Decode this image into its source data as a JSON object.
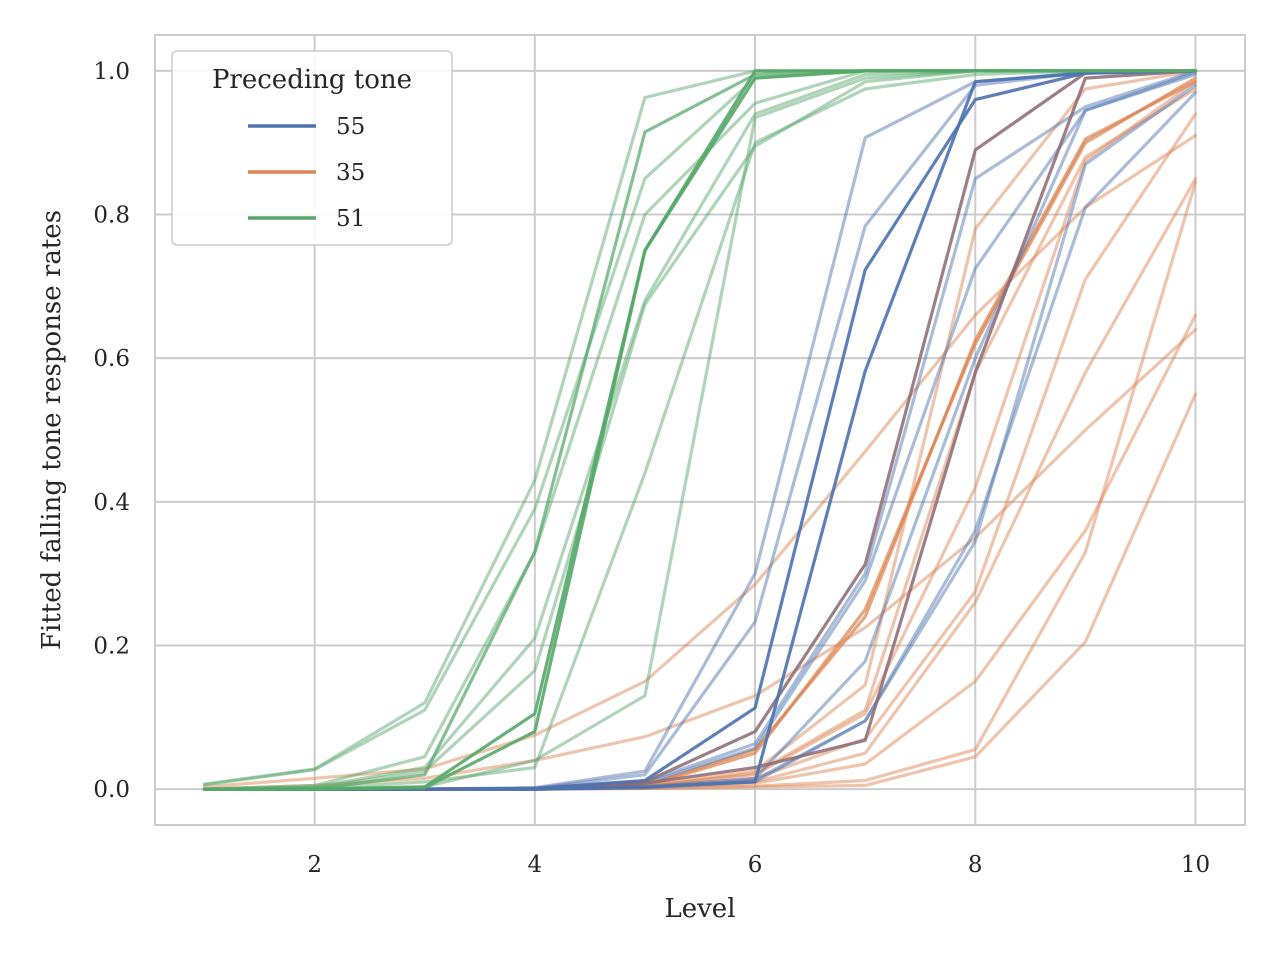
{
  "chart_data": {
    "type": "line",
    "xlabel": "Level",
    "ylabel": "Fitted falling tone response rates",
    "xlim": [
      0.55,
      10.45
    ],
    "ylim": [
      -0.05,
      1.05
    ],
    "xticks": [
      2,
      4,
      6,
      8,
      10
    ],
    "yticks": [
      0.0,
      0.2,
      0.4,
      0.6,
      0.8,
      1.0
    ],
    "xtick_labels": [
      "2",
      "4",
      "6",
      "8",
      "10"
    ],
    "ytick_labels": [
      "0.0",
      "0.2",
      "0.4",
      "0.6",
      "0.8",
      "1.0"
    ],
    "grid": true,
    "legend": {
      "title": "Preceding tone",
      "position": "top-left",
      "entries": [
        {
          "label": "55",
          "color": "#4c72b0"
        },
        {
          "label": "35",
          "color": "#dd8452"
        },
        {
          "label": "51",
          "color": "#55a868"
        }
      ]
    },
    "x": [
      1,
      2,
      3,
      4,
      5,
      6,
      7,
      8,
      9,
      10
    ],
    "series": [
      {
        "group": "51",
        "emphasis": "bold",
        "values": [
          0.0,
          0.0,
          0.002,
          0.08,
          0.75,
          0.99,
          1.0,
          1.0,
          1.0,
          1.0
        ]
      },
      {
        "group": "51",
        "emphasis": "bold",
        "values": [
          0.0,
          0.0,
          0.003,
          0.105,
          0.75,
          1.0,
          1.0,
          1.0,
          1.0,
          1.0
        ]
      },
      {
        "group": "51",
        "emphasis": "mid",
        "values": [
          0.0,
          0.0,
          0.02,
          0.33,
          0.915,
          0.995,
          1.0,
          1.0,
          1.0,
          1.0
        ]
      },
      {
        "group": "51",
        "emphasis": "faint",
        "values": [
          0.007,
          0.028,
          0.12,
          0.43,
          0.963,
          1.0,
          1.0,
          1.0,
          1.0,
          1.0
        ]
      },
      {
        "group": "51",
        "emphasis": "faint",
        "values": [
          0.006,
          0.027,
          0.11,
          0.39,
          0.85,
          0.99,
          1.0,
          1.0,
          1.0,
          1.0
        ]
      },
      {
        "group": "51",
        "emphasis": "faint",
        "values": [
          0.0,
          0.005,
          0.045,
          0.33,
          0.8,
          0.955,
          1.0,
          1.0,
          1.0,
          1.0
        ]
      },
      {
        "group": "51",
        "emphasis": "faint",
        "values": [
          0.0,
          0.003,
          0.03,
          0.21,
          0.68,
          0.94,
          0.995,
          1.0,
          1.0,
          1.0
        ]
      },
      {
        "group": "51",
        "emphasis": "faint",
        "values": [
          0.0,
          0.002,
          0.025,
          0.165,
          0.675,
          0.895,
          0.985,
          1.0,
          1.0,
          1.0
        ]
      },
      {
        "group": "51",
        "emphasis": "faint",
        "values": [
          0.0,
          0.001,
          0.01,
          0.03,
          0.44,
          0.9,
          0.975,
          0.995,
          1.0,
          1.0
        ]
      },
      {
        "group": "51",
        "emphasis": "faint",
        "values": [
          0.0,
          0.0,
          0.003,
          0.04,
          0.13,
          0.935,
          0.99,
          1.0,
          1.0,
          1.0
        ]
      },
      {
        "group": "55",
        "emphasis": "bold",
        "values": [
          0.0,
          0.0,
          0.0,
          0.001,
          0.012,
          0.113,
          0.723,
          0.96,
          0.997,
          1.0
        ]
      },
      {
        "group": "55",
        "emphasis": "bold",
        "values": [
          0.0,
          0.0,
          0.0,
          0.0,
          0.003,
          0.01,
          0.582,
          0.985,
          0.997,
          1.0
        ]
      },
      {
        "group": "55",
        "emphasis": "faint",
        "values": [
          0.0,
          0.0,
          0.0,
          0.002,
          0.025,
          0.3,
          0.907,
          0.985,
          0.998,
          1.0
        ]
      },
      {
        "group": "55",
        "emphasis": "faint",
        "values": [
          0.0,
          0.0,
          0.0,
          0.001,
          0.02,
          0.233,
          0.784,
          0.98,
          0.998,
          1.0
        ]
      },
      {
        "group": "55",
        "emphasis": "faint",
        "values": [
          0.0,
          0.0,
          0.0,
          0.0,
          0.01,
          0.063,
          0.3,
          0.85,
          0.95,
          1.0
        ]
      },
      {
        "group": "55",
        "emphasis": "faint",
        "values": [
          0.0,
          0.0,
          0.0,
          0.0,
          0.008,
          0.057,
          0.29,
          0.725,
          0.945,
          0.995
        ]
      },
      {
        "group": "55",
        "emphasis": "faint",
        "values": [
          0.0,
          0.0,
          0.0,
          0.0,
          0.003,
          0.015,
          0.178,
          0.6,
          0.945,
          0.998
        ]
      },
      {
        "group": "55",
        "emphasis": "faint",
        "values": [
          0.0,
          0.0,
          0.0,
          0.0,
          0.002,
          0.01,
          0.095,
          0.36,
          0.81,
          0.97
        ]
      },
      {
        "group": "55",
        "emphasis": "faint",
        "values": [
          0.0,
          0.0,
          0.0,
          0.0,
          0.002,
          0.013,
          0.095,
          0.345,
          0.87,
          0.98
        ]
      },
      {
        "group": "55",
        "emphasis": "dark",
        "values": [
          0.0,
          0.0,
          0.0,
          0.001,
          0.01,
          0.08,
          0.313,
          0.89,
          0.997,
          1.0
        ]
      },
      {
        "group": "55",
        "emphasis": "dark",
        "values": [
          0.0,
          0.0,
          0.0,
          0.001,
          0.008,
          0.03,
          0.068,
          0.58,
          0.99,
          1.0
        ]
      },
      {
        "group": "35",
        "emphasis": "mid",
        "values": [
          0.0,
          0.0,
          0.0,
          0.001,
          0.005,
          0.055,
          0.24,
          0.625,
          0.905,
          0.985
        ]
      },
      {
        "group": "35",
        "emphasis": "mid",
        "values": [
          0.0,
          0.0,
          0.0,
          0.001,
          0.004,
          0.05,
          0.25,
          0.62,
          0.9,
          0.99
        ]
      },
      {
        "group": "35",
        "emphasis": "faint",
        "values": [
          0.003,
          0.015,
          0.028,
          0.075,
          0.15,
          0.285,
          0.47,
          0.66,
          0.81,
          0.91
        ]
      },
      {
        "group": "35",
        "emphasis": "faint",
        "values": [
          0.0,
          0.005,
          0.015,
          0.04,
          0.073,
          0.13,
          0.225,
          0.35,
          0.5,
          0.64
        ]
      },
      {
        "group": "35",
        "emphasis": "faint",
        "values": [
          0.0,
          0.0,
          0.0,
          0.001,
          0.004,
          0.025,
          0.145,
          0.78,
          0.975,
          1.0
        ]
      },
      {
        "group": "35",
        "emphasis": "faint",
        "values": [
          0.0,
          0.0,
          0.0,
          0.001,
          0.004,
          0.022,
          0.11,
          0.58,
          0.88,
          0.975
        ]
      },
      {
        "group": "35",
        "emphasis": "faint",
        "values": [
          0.0,
          0.0,
          0.0,
          0.001,
          0.004,
          0.02,
          0.105,
          0.42,
          0.875,
          0.985
        ]
      },
      {
        "group": "35",
        "emphasis": "faint",
        "values": [
          0.0,
          0.0,
          0.0,
          0.0,
          0.003,
          0.015,
          0.07,
          0.275,
          0.71,
          0.94
        ]
      },
      {
        "group": "35",
        "emphasis": "faint",
        "values": [
          0.0,
          0.0,
          0.0,
          0.0,
          0.002,
          0.01,
          0.05,
          0.26,
          0.58,
          0.85
        ]
      },
      {
        "group": "35",
        "emphasis": "faint",
        "values": [
          0.0,
          0.0,
          0.0,
          0.0,
          0.002,
          0.008,
          0.035,
          0.15,
          0.36,
          0.66
        ]
      },
      {
        "group": "35",
        "emphasis": "faint",
        "values": [
          0.0,
          0.0,
          0.0,
          0.0,
          0.001,
          0.004,
          0.012,
          0.055,
          0.33,
          0.845
        ]
      },
      {
        "group": "35",
        "emphasis": "faint",
        "values": [
          0.0,
          0.0,
          0.0,
          0.0,
          0.001,
          0.003,
          0.005,
          0.045,
          0.205,
          0.55
        ]
      }
    ]
  }
}
